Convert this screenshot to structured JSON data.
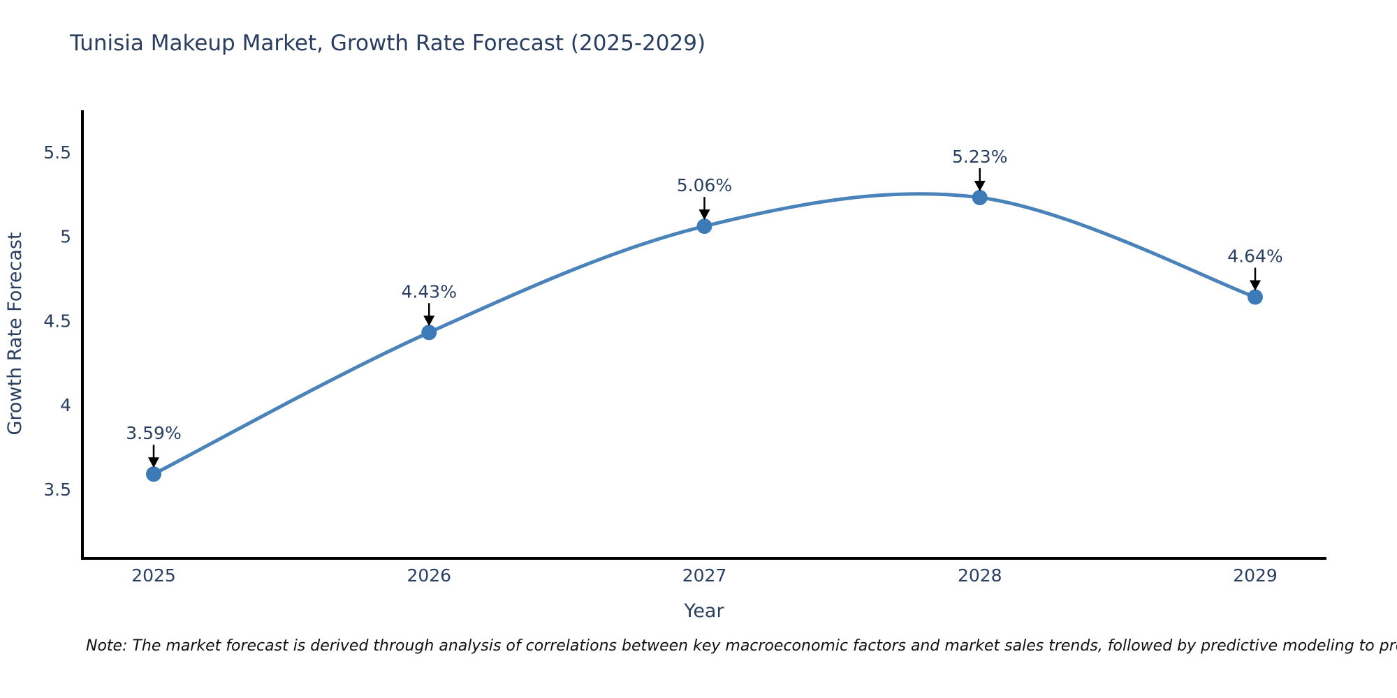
{
  "title": "Tunisia Makeup Market, Growth Rate Forecast (2025-2029)",
  "note": "Note: The market forecast is derived through analysis of correlations between key macroeconomic factors and market sales trends, followed by predictive modeling to project future sales",
  "chart_data": {
    "type": "line",
    "line_shape": "spline",
    "categories": [
      "2025",
      "2026",
      "2027",
      "2028",
      "2029"
    ],
    "values": [
      3.59,
      4.43,
      5.06,
      5.23,
      4.64
    ],
    "point_labels": [
      "3.59%",
      "4.43%",
      "5.06%",
      "5.23%",
      "4.64%"
    ],
    "title": "Tunisia Makeup Market, Growth Rate Forecast (2025-2029)",
    "xlabel": "Year",
    "ylabel": "Growth Rate Forecast",
    "yticks": [
      "3.5",
      "4",
      "4.5",
      "5",
      "5.5"
    ],
    "ytick_values": [
      3.5,
      4,
      4.5,
      5,
      5.5
    ],
    "ylim": [
      3.09,
      5.76
    ],
    "grid": false,
    "legend": "none",
    "colors": {
      "line": "#4a82ba",
      "marker": "#3d7ab8",
      "axis": "#000000",
      "text": "#2a3f5f",
      "annotation_arrow": "#000000",
      "note_text": "#111111",
      "background": "#ffffff"
    }
  }
}
